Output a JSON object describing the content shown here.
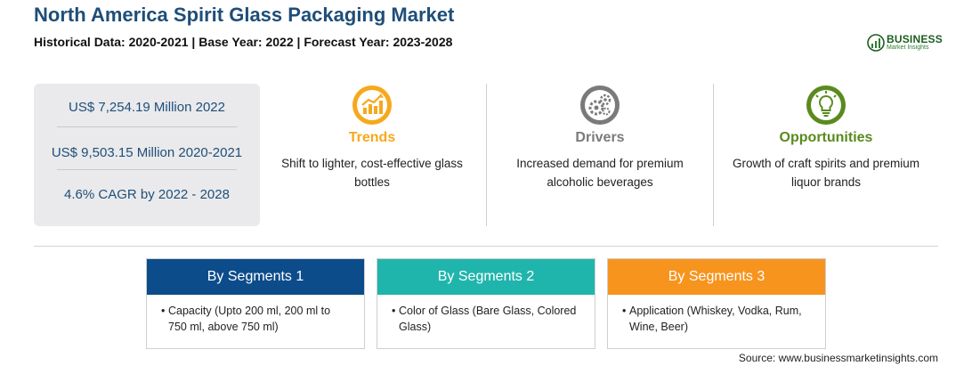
{
  "header": {
    "title": "North America Spirit Glass Packaging Market",
    "subtitle": "Historical Data: 2020-2021 | Base Year: 2022 | Forecast Year: 2023-2028"
  },
  "logo": {
    "name": "BUSINESS",
    "sub": "Market Insights",
    "color": "#1b5e20"
  },
  "stats": [
    {
      "value": "US$ 7,254.19 Million 2022"
    },
    {
      "value": "US$ 9,503.15 Million 2020-2021"
    },
    {
      "value": "4.6% CAGR by 2022 - 2028"
    }
  ],
  "columns": [
    {
      "icon": "trend-chart-icon",
      "title": "Trends",
      "color": "#f7a81b",
      "text": "Shift to lighter, cost-effective glass bottles"
    },
    {
      "icon": "gears-icon",
      "title": "Drivers",
      "color": "#7a7a7a",
      "text": "Increased demand for premium alcoholic beverages"
    },
    {
      "icon": "lightbulb-icon",
      "title": "Opportunities",
      "color": "#5a8a1e",
      "text": "Growth of craft spirits and premium liquor brands"
    }
  ],
  "segments": [
    {
      "title": "By Segments 1",
      "color": "#0d4c8b",
      "bullet": "•",
      "text": "Capacity (Upto 200 ml, 200 ml to 750 ml, above 750 ml)"
    },
    {
      "title": "By Segments 2",
      "color": "#20b5ac",
      "bullet": "•",
      "text": "Color of Glass (Bare Glass, Colored Glass)"
    },
    {
      "title": "By Segments 3",
      "color": "#f7941d",
      "bullet": "•",
      "text": "Application (Whiskey, Vodka, Rum, Wine, Beer)"
    }
  ],
  "footer": {
    "source": "Source: www.businessmarketinsights.com"
  }
}
